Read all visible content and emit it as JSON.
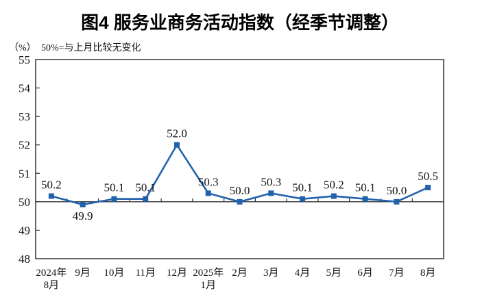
{
  "title": "图4 服务业商务活动指数（经季节调整）",
  "unit_label": "（%）",
  "note": "50%=与上月比较无变化",
  "chart_data": {
    "type": "line",
    "title": "图4 服务业商务活动指数（经季节调整）",
    "subtitle": "（%）50%=与上月比较无变化",
    "categories": [
      "2024年\n8月",
      "9月",
      "10月",
      "11月",
      "12月",
      "2025年\n1月",
      "2月",
      "3月",
      "4月",
      "5月",
      "6月",
      "7月",
      "8月"
    ],
    "values": [
      50.2,
      49.9,
      50.1,
      50.1,
      52.0,
      50.3,
      50.0,
      50.3,
      50.1,
      50.2,
      50.1,
      50.0,
      50.5
    ],
    "label_positions": [
      "above",
      "below",
      "above",
      "above",
      "above",
      "above",
      "above",
      "above",
      "above",
      "above",
      "above",
      "above",
      "above"
    ],
    "ylabel": "（%）",
    "ylim": [
      48,
      55
    ],
    "ytick_step": 1,
    "baseline": 50,
    "grid": false,
    "legend": "none",
    "line_color": "#2262ad",
    "marker": "square",
    "axis_color": "#333333",
    "text_color": "#111111"
  }
}
